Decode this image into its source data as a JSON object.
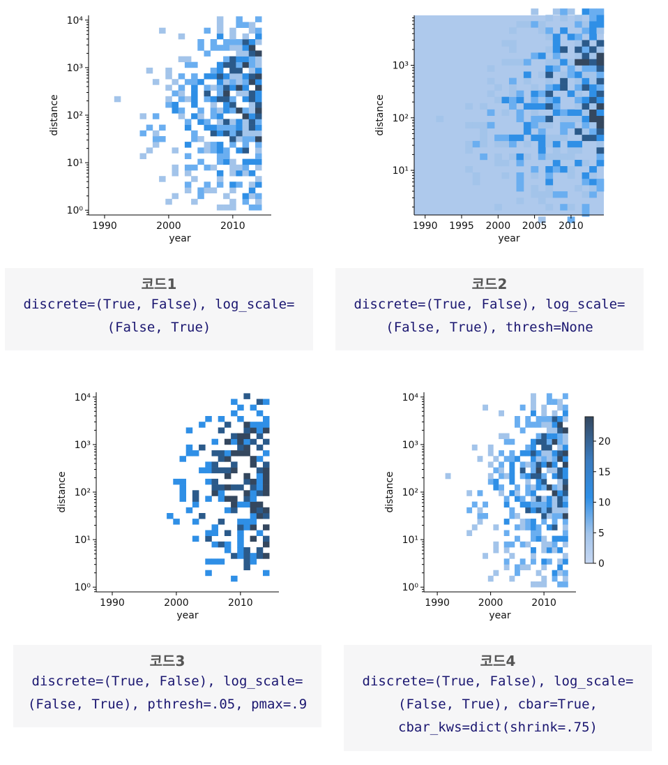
{
  "colors": {
    "light": "#a3c4ea",
    "mid": "#6aaef0",
    "bright": "#2f8fe6",
    "dark": "#2b5a8a",
    "darkest": "#34475e",
    "background_fill": "#aec9ec",
    "caption_bg": "#f6f6f7",
    "caption_title": "#555555",
    "caption_code": "#1a1670"
  },
  "chart_data": [
    {
      "type": "heatmap",
      "xlabel": "year",
      "ylabel": "distance",
      "x_ticks": [
        "1990",
        "2000",
        "2010"
      ],
      "y_ticks": [
        "10⁰",
        "10¹",
        "10²",
        "10³",
        "10⁴"
      ],
      "x_range": [
        1987.5,
        2016
      ],
      "y_log_range": [
        -0.1,
        4.1
      ],
      "log_scale_y": true,
      "colorbar": false
    },
    {
      "type": "heatmap",
      "xlabel": "year",
      "ylabel": "distance",
      "x_ticks": [
        "1990",
        "1995",
        "2000",
        "2005",
        "2010"
      ],
      "y_ticks": [
        "10¹",
        "10²",
        "10³"
      ],
      "x_range": [
        1988.5,
        2014.5
      ],
      "y_log_range": [
        0.15,
        3.95
      ],
      "log_scale_y": true,
      "colorbar": false,
      "thresh": "None"
    },
    {
      "type": "heatmap",
      "xlabel": "year",
      "ylabel": "distance",
      "x_ticks": [
        "1990",
        "2000",
        "2010"
      ],
      "y_ticks": [
        "10⁰",
        "10¹",
        "10²",
        "10³",
        "10⁴"
      ],
      "x_range": [
        1987.5,
        2016
      ],
      "y_log_range": [
        -0.1,
        4.1
      ],
      "log_scale_y": true,
      "colorbar": false,
      "pthresh": 0.05,
      "pmax": 0.9
    },
    {
      "type": "heatmap",
      "xlabel": "year",
      "ylabel": "distance",
      "x_ticks": [
        "1990",
        "2000",
        "2010"
      ],
      "y_ticks": [
        "10⁰",
        "10¹",
        "10²",
        "10³",
        "10⁴"
      ],
      "x_range": [
        1987.5,
        2016
      ],
      "y_log_range": [
        -0.1,
        4.1
      ],
      "log_scale_y": true,
      "colorbar": true,
      "colorbar_ticks": [
        "0",
        "5",
        "10",
        "15",
        "20"
      ],
      "colorbar_range": [
        0,
        24
      ]
    }
  ],
  "captions": [
    {
      "title": "코드1",
      "code": "discrete=(True, False), log_scale=\n(False, True)"
    },
    {
      "title": "코드2",
      "code": "discrete=(True, False), log_scale=\n(False, True), thresh=None"
    },
    {
      "title": "코드3",
      "code": "discrete=(True, False), log_scale=\n(False, True), pthresh=.05, pmax=.9"
    },
    {
      "title": "코드4",
      "code": "discrete=(True, False), log_scale=\n(False, True), cbar=True,\ncbar_kws=dict(shrink=.75)"
    }
  ]
}
